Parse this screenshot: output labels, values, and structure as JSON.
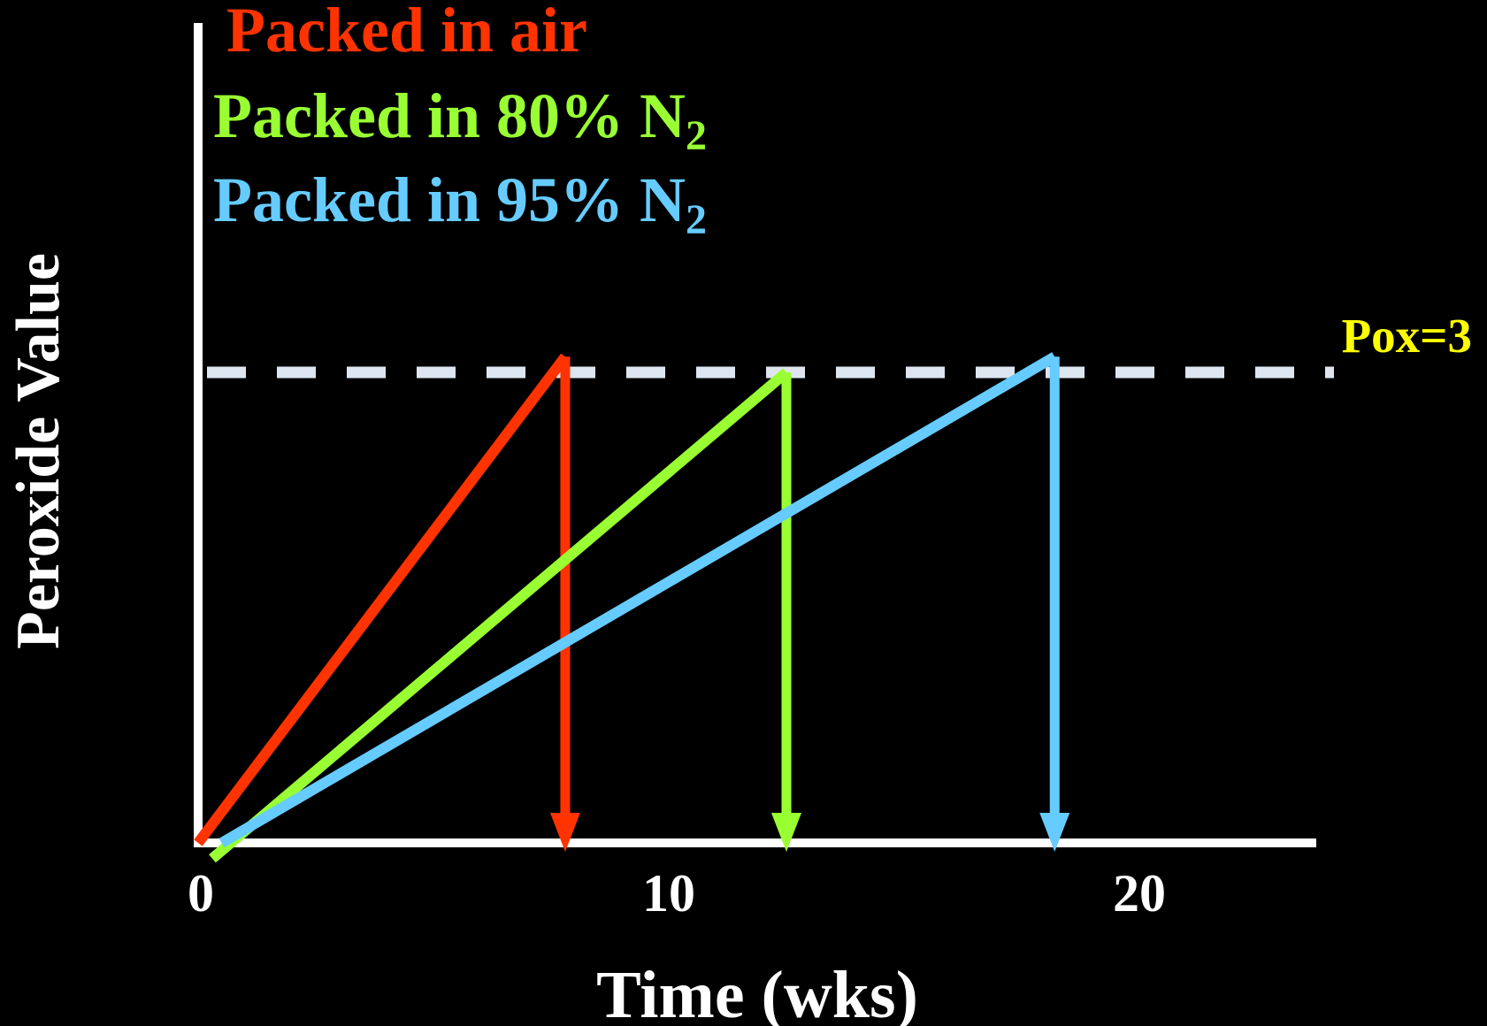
{
  "chart_data": {
    "type": "line",
    "xlabel": "Time (wks)",
    "ylabel": "Peroxide Value",
    "xticks": [
      0,
      10,
      20
    ],
    "xlim": [
      0,
      20.1
    ],
    "ylim": [
      0,
      3.3
    ],
    "threshold": {
      "value": 3,
      "label": "Pox=3",
      "color": "#FFFF00",
      "line_color": "#DDE6F0"
    },
    "series": [
      {
        "name": "Packed in air",
        "subscript": "",
        "color": "#FF3300",
        "x": [
          0,
          7.8
        ],
        "y": [
          0,
          3.1
        ],
        "drop_x": 7.8
      },
      {
        "name": "Packed in 80% N",
        "subscript": "2",
        "color": "#99FF33",
        "x": [
          0.3,
          12.5
        ],
        "y": [
          -0.1,
          3.0
        ],
        "drop_x": 12.5
      },
      {
        "name": "Packed in 95% N",
        "subscript": "2",
        "color": "#66CCFF",
        "x": [
          0.5,
          18.2
        ],
        "y": [
          0,
          3.1
        ],
        "drop_x": 18.2
      }
    ]
  }
}
